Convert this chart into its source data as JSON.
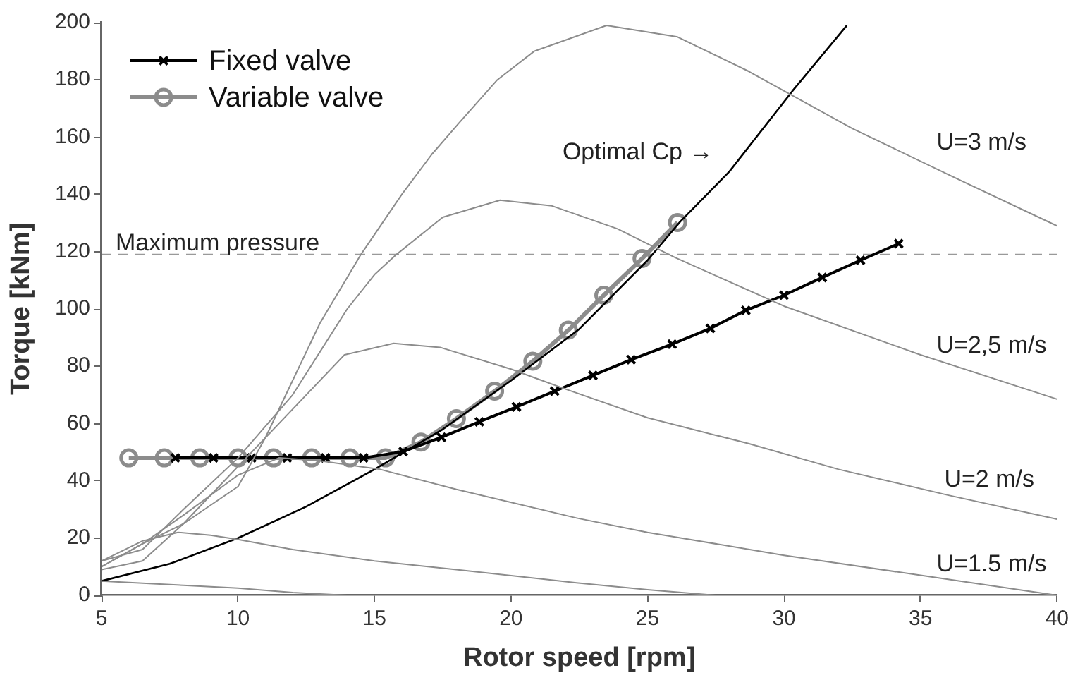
{
  "chart_data": {
    "type": "line",
    "xlabel": "Rotor speed [rpm]",
    "ylabel": "Torque [kNm]",
    "xlim": [
      5,
      40
    ],
    "xticks": [
      5,
      10,
      15,
      20,
      25,
      30,
      35,
      40
    ],
    "ylim": [
      0,
      200
    ],
    "yticks": [
      0,
      20,
      40,
      60,
      80,
      100,
      120,
      140,
      160,
      180,
      200
    ],
    "grid": false,
    "legend": "top left",
    "series": [
      {
        "color": "#8c8c8c",
        "marker": "none",
        "x": [
          5,
          6.5,
          8,
          10,
          11,
          12,
          13,
          14.5,
          16,
          17.1,
          18.1,
          19.5,
          20.85,
          23.5,
          26.1,
          28.7,
          32.5,
          36,
          40
        ],
        "values": [
          9,
          12,
          25,
          38,
          55,
          75,
          95,
          119,
          140,
          154,
          165,
          180,
          190,
          199,
          195,
          183,
          163,
          147,
          129
        ]
      },
      {
        "color": "#8c8c8c",
        "marker": "none",
        "x": [
          5,
          6.5,
          8,
          10,
          12,
          13,
          14,
          15,
          15.8,
          17.5,
          19.6,
          21.5,
          23.9,
          26,
          30,
          35,
          40
        ],
        "values": [
          12,
          16,
          30,
          48,
          70,
          85,
          100,
          112,
          119,
          132,
          138,
          136,
          128,
          118,
          101,
          84,
          68.5
        ]
      },
      {
        "color": "#8c8c8c",
        "marker": "none",
        "x": [
          5,
          6.5,
          8,
          10,
          12,
          13.9,
          15.7,
          17.4,
          20,
          22,
          25,
          28.7,
          32,
          36,
          40
        ],
        "values": [
          10,
          18,
          25,
          45,
          65,
          84,
          88,
          86.6,
          79,
          72,
          62,
          53,
          44,
          35,
          26.6
        ]
      },
      {
        "color": "#8c8c8c",
        "marker": "none",
        "x": [
          5,
          6.5,
          8,
          10,
          11.5,
          13,
          15.2,
          18,
          22.4,
          25,
          30,
          35,
          40
        ],
        "values": [
          10,
          18,
          28,
          42,
          48,
          47,
          44,
          37,
          27,
          22,
          14,
          7,
          0
        ]
      },
      {
        "color": "#8c8c8c",
        "marker": "none",
        "x": [
          5,
          6.5,
          7.8,
          9,
          10,
          12,
          15,
          18,
          22.4,
          25,
          27.5
        ],
        "values": [
          12,
          19,
          22,
          21,
          19.5,
          16,
          12,
          9,
          4.4,
          2,
          0
        ]
      },
      {
        "color": "#8c8c8c",
        "marker": "none",
        "x": [
          5,
          8,
          10,
          12,
          14
        ],
        "values": [
          5,
          3.5,
          2.5,
          1,
          0
        ]
      },
      {
        "color": "#000000",
        "marker": "none",
        "x": [
          5,
          7.5,
          10,
          12.5,
          15,
          17.5,
          20,
          22.5,
          25,
          26.2,
          28,
          30.3,
          32.3
        ],
        "values": [
          5,
          11,
          20,
          31,
          44,
          58,
          75,
          93,
          117,
          130.5,
          148,
          176,
          199
        ]
      },
      {
        "name": "Fixed valve",
        "color": "#000000",
        "marker": "cross",
        "x": [
          7.7,
          9.1,
          10.5,
          11.8,
          13.2,
          14.6,
          16.05,
          17.45,
          18.84,
          20.2,
          21.6,
          23.0,
          24.4,
          25.9,
          27.3,
          28.6,
          30.0,
          31.4,
          32.8,
          34.2
        ],
        "values": [
          48,
          48,
          48,
          48,
          48,
          48,
          50.2,
          55.2,
          60.6,
          65.8,
          71.3,
          76.8,
          82.3,
          87.7,
          93.2,
          99.5,
          104.8,
          111,
          117,
          122.8
        ]
      },
      {
        "name": "Variable valve",
        "color": "#8c8c8c",
        "marker": "circle",
        "x": [
          6.0,
          7.3,
          8.6,
          10.0,
          11.3,
          12.7,
          14.1,
          15.4,
          16.7,
          18.0,
          19.4,
          20.8,
          22.1,
          23.4,
          24.8,
          26.1
        ],
        "values": [
          48,
          48,
          48,
          48,
          48,
          48,
          48,
          48,
          53.5,
          61.7,
          71.3,
          81.8,
          92.6,
          104.8,
          117.6,
          130.2
        ]
      }
    ],
    "ref_lines": [
      {
        "axis": "y",
        "value": 119,
        "label": "Maximum pressure",
        "color": "#999999",
        "line_style": "dashed"
      }
    ],
    "annotations": [
      "Optimal Cp →",
      "U=3 m/s",
      "U=2,5 m/s",
      "U=2 m/s",
      "U=1.5 m/s"
    ]
  }
}
